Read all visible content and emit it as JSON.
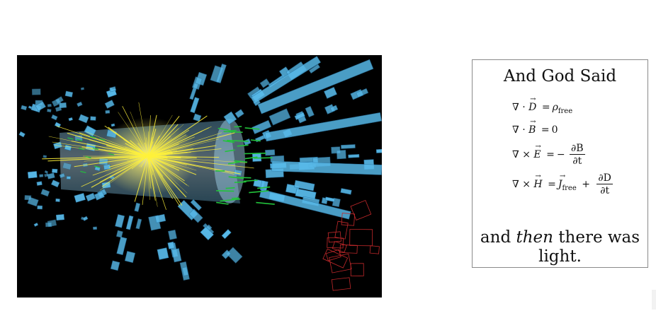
{
  "image": {
    "subject": "particle collision event display"
  },
  "quote": {
    "title": "And God Said",
    "equations": [
      {
        "id": "gauss-d",
        "lhs_op": "∇ ·",
        "field": "D",
        "rhs": "ρ",
        "rhs_sub": "free"
      },
      {
        "id": "gauss-b",
        "lhs_op": "∇ ·",
        "field": "B",
        "rhs": "0"
      },
      {
        "id": "faraday",
        "lhs_op": "∇ ×",
        "field": "E",
        "rhs_prefix": "−",
        "num": "∂B",
        "den": "∂t"
      },
      {
        "id": "ampere",
        "lhs_op": "∇ ×",
        "field": "H",
        "rhs_field": "J",
        "rhs_sub": "free",
        "num": "∂D",
        "den": "∂t"
      }
    ],
    "closing_before": "and ",
    "closing_emphasis": "then",
    "closing_after": " there was light."
  },
  "colors": {
    "background": "#000000",
    "blocks": "#58b9e8",
    "tracks_core": "#fff23a",
    "tracks_green": "#22c33b",
    "muon_towers": "#c0282a",
    "box_border": "#8a8a8a"
  }
}
